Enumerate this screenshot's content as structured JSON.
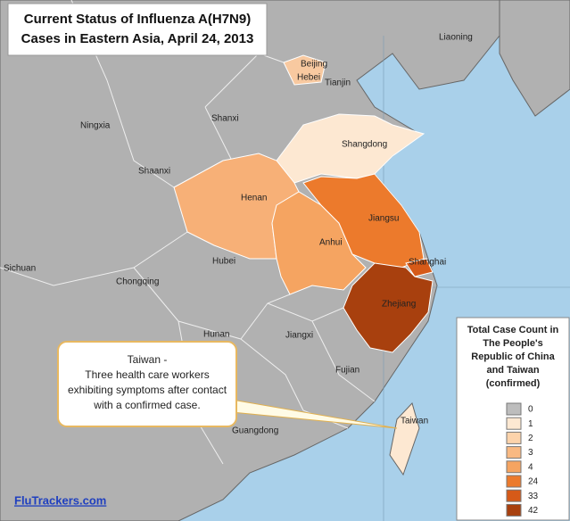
{
  "title": [
    "Current Status of Influenza A(H7N9)",
    "Cases in Eastern Asia, April 24, 2013"
  ],
  "regions": [
    {
      "label": "Beijing",
      "color": "#f8c9a0"
    },
    {
      "label": "Shangdong",
      "color": "#fde8d2"
    },
    {
      "label": "Henan",
      "color": "#f7b077"
    },
    {
      "label": "Anhui",
      "color": "#f5a461"
    },
    {
      "label": "Jiangsu",
      "color": "#ec7a2c"
    },
    {
      "label": "Shanghai",
      "color": "#d65a18"
    },
    {
      "label": "Zhejiang",
      "color": "#a8400e"
    },
    {
      "label": "Taiwan",
      "color": "#fde8d2"
    }
  ],
  "labels": [
    "Liaoning",
    "Hebei",
    "Tianjin",
    "Shanxi",
    "Ningxia",
    "Shaanxi",
    "Sichuan",
    "Chongqing",
    "Hubei",
    "Hunan",
    "Jiangxi",
    "Fujian",
    "Guangdong"
  ],
  "callout": [
    "Taiwan -",
    "Three health care workers",
    "exhibiting symptoms after contact",
    "with a confirmed case."
  ],
  "legend": {
    "title": [
      "Total Case Count in",
      "The People's",
      "Republic of China",
      "and Taiwan",
      "(confirmed)"
    ],
    "items": [
      {
        "label": 0,
        "color": "#bdbdbd"
      },
      {
        "label": 1,
        "color": "#fde8d2"
      },
      {
        "label": 2,
        "color": "#fcd3ab"
      },
      {
        "label": 3,
        "color": "#f9b982"
      },
      {
        "label": 4,
        "color": "#f5a461"
      },
      {
        "label": 24,
        "color": "#ec7a2c"
      },
      {
        "label": 33,
        "color": "#d65a18"
      },
      {
        "label": 42,
        "color": "#a8400e"
      }
    ]
  },
  "footer": "FluTrackers.com"
}
